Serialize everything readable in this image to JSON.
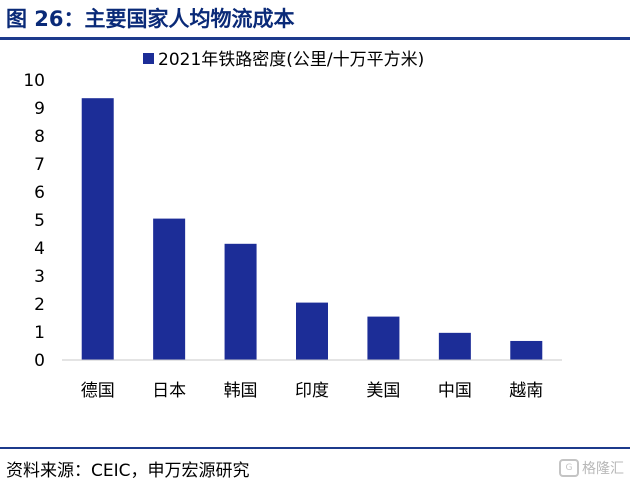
{
  "figure": {
    "title": "图 26：主要国家人均物流成本",
    "source": "资料来源：CEIC，申万宏源研究",
    "watermark": "格隆汇",
    "watermark_logo": "G"
  },
  "colors": {
    "bar": "#1c2d97",
    "rule": "#1c3a8c",
    "title": "#0a2a78"
  },
  "chart_data": {
    "type": "bar",
    "categories": [
      "德国",
      "日本",
      "韩国",
      "印度",
      "美国",
      "中国",
      "越南"
    ],
    "series": [
      {
        "name": "2021年铁路密度(公里/十万平方米)",
        "values": [
          9.35,
          5.05,
          4.15,
          2.05,
          1.55,
          0.97,
          0.68
        ]
      }
    ],
    "ylim": [
      0,
      10
    ],
    "yticks": [
      0,
      1,
      2,
      3,
      4,
      5,
      6,
      7,
      8,
      9,
      10
    ],
    "grid": false,
    "legend_position": "top"
  }
}
